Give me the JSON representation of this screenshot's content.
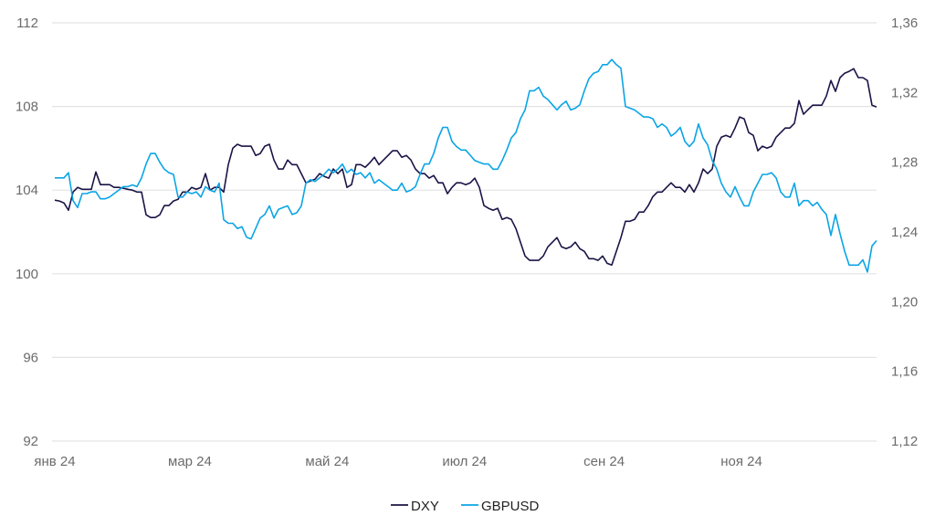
{
  "chart_data": {
    "type": "line",
    "title": "",
    "xlabel": "",
    "ylabel_left": "",
    "ylabel_right": "",
    "x_range_days": [
      0,
      365
    ],
    "x_ticks": [
      {
        "label": "янв 24",
        "day": 0
      },
      {
        "label": "мар 24",
        "day": 60
      },
      {
        "label": "май 24",
        "day": 121
      },
      {
        "label": "июл 24",
        "day": 182
      },
      {
        "label": "сен 24",
        "day": 244
      },
      {
        "label": "ноя 24",
        "day": 305
      }
    ],
    "y_left": {
      "range": [
        92,
        112
      ],
      "ticks": [
        "92",
        "96",
        "100",
        "104",
        "108",
        "112"
      ],
      "values": [
        92,
        96,
        100,
        104,
        108,
        112
      ]
    },
    "y_right": {
      "range": [
        1.12,
        1.36
      ],
      "ticks": [
        "1,12",
        "1,16",
        "1,20",
        "1,24",
        "1,28",
        "1,32",
        "1,36"
      ],
      "values": [
        1.12,
        1.16,
        1.2,
        1.24,
        1.28,
        1.32,
        1.36
      ]
    },
    "grid": true,
    "legend_position": "bottom-center",
    "series": [
      {
        "name": "DXY",
        "axis": "left",
        "color": "#1a1446",
        "values": [
          103.52,
          103.48,
          103.39,
          103.04,
          103.91,
          104.13,
          104.04,
          104.04,
          104.04,
          104.87,
          104.26,
          104.26,
          104.26,
          104.13,
          104.13,
          104.09,
          104.04,
          104.0,
          103.91,
          103.91,
          102.82,
          102.69,
          102.69,
          102.82,
          103.26,
          103.26,
          103.48,
          103.56,
          103.91,
          103.91,
          104.13,
          104.04,
          104.13,
          104.79,
          104.0,
          104.13,
          104.13,
          103.91,
          105.22,
          106.01,
          106.19,
          106.1,
          106.1,
          106.1,
          105.66,
          105.75,
          106.1,
          106.19,
          105.44,
          105.01,
          105.01,
          105.44,
          105.22,
          105.22,
          104.79,
          104.35,
          104.44,
          104.52,
          104.79,
          104.66,
          104.57,
          105.01,
          104.79,
          105.01,
          104.13,
          104.26,
          105.22,
          105.22,
          105.09,
          105.31,
          105.57,
          105.22,
          105.44,
          105.66,
          105.88,
          105.88,
          105.57,
          105.66,
          105.44,
          105.01,
          104.79,
          104.79,
          104.57,
          104.7,
          104.35,
          104.35,
          103.83,
          104.13,
          104.35,
          104.35,
          104.26,
          104.35,
          104.57,
          104.13,
          103.26,
          103.13,
          103.04,
          103.13,
          102.6,
          102.69,
          102.6,
          102.16,
          101.51,
          100.85,
          100.64,
          100.64,
          100.64,
          100.85,
          101.29,
          101.51,
          101.73,
          101.29,
          101.2,
          101.29,
          101.51,
          101.2,
          101.07,
          100.72,
          100.72,
          100.64,
          100.85,
          100.5,
          100.42,
          101.07,
          101.73,
          102.51,
          102.51,
          102.6,
          102.95,
          102.95,
          103.26,
          103.69,
          103.91,
          103.91,
          104.13,
          104.35,
          104.13,
          104.13,
          103.91,
          104.26,
          103.91,
          104.35,
          105.01,
          104.79,
          105.01,
          106.1,
          106.53,
          106.62,
          106.53,
          106.97,
          107.5,
          107.41,
          106.75,
          106.62,
          105.88,
          106.1,
          106.01,
          106.1,
          106.53,
          106.75,
          106.97,
          106.97,
          107.19,
          108.28,
          107.63,
          107.85,
          108.06,
          108.06,
          108.06,
          108.5,
          109.24,
          108.72,
          109.38,
          109.59,
          109.68,
          109.81,
          109.38,
          109.38,
          109.24,
          108.06,
          107.98
        ]
      },
      {
        "name": "GBPUSD",
        "axis": "right",
        "color": "#0aa5e6",
        "values": [
          1.271,
          1.271,
          1.271,
          1.274,
          1.258,
          1.254,
          1.262,
          1.262,
          1.263,
          1.263,
          1.259,
          1.259,
          1.26,
          1.262,
          1.264,
          1.266,
          1.266,
          1.267,
          1.266,
          1.271,
          1.279,
          1.285,
          1.285,
          1.28,
          1.276,
          1.274,
          1.273,
          1.26,
          1.26,
          1.263,
          1.262,
          1.263,
          1.26,
          1.266,
          1.264,
          1.263,
          1.268,
          1.247,
          1.245,
          1.245,
          1.242,
          1.243,
          1.237,
          1.236,
          1.242,
          1.248,
          1.25,
          1.255,
          1.248,
          1.253,
          1.254,
          1.255,
          1.25,
          1.251,
          1.255,
          1.268,
          1.27,
          1.269,
          1.271,
          1.273,
          1.276,
          1.274,
          1.276,
          1.279,
          1.274,
          1.276,
          1.273,
          1.274,
          1.271,
          1.274,
          1.268,
          1.27,
          1.268,
          1.266,
          1.264,
          1.264,
          1.268,
          1.263,
          1.264,
          1.266,
          1.273,
          1.279,
          1.279,
          1.285,
          1.294,
          1.3,
          1.3,
          1.292,
          1.289,
          1.287,
          1.287,
          1.284,
          1.281,
          1.28,
          1.279,
          1.279,
          1.276,
          1.276,
          1.281,
          1.287,
          1.294,
          1.297,
          1.305,
          1.31,
          1.321,
          1.321,
          1.323,
          1.318,
          1.316,
          1.313,
          1.31,
          1.313,
          1.315,
          1.31,
          1.311,
          1.313,
          1.321,
          1.328,
          1.331,
          1.332,
          1.336,
          1.336,
          1.339,
          1.336,
          1.334,
          1.312,
          1.311,
          1.31,
          1.308,
          1.306,
          1.306,
          1.305,
          1.3,
          1.302,
          1.3,
          1.295,
          1.297,
          1.3,
          1.292,
          1.289,
          1.292,
          1.302,
          1.294,
          1.29,
          1.281,
          1.276,
          1.268,
          1.263,
          1.26,
          1.266,
          1.26,
          1.255,
          1.255,
          1.263,
          1.268,
          1.273,
          1.273,
          1.274,
          1.271,
          1.263,
          1.26,
          1.26,
          1.268,
          1.255,
          1.258,
          1.258,
          1.255,
          1.257,
          1.253,
          1.25,
          1.238,
          1.25,
          1.239,
          1.229,
          1.221,
          1.221,
          1.221,
          1.224,
          1.217,
          1.232,
          1.235
        ]
      }
    ]
  }
}
